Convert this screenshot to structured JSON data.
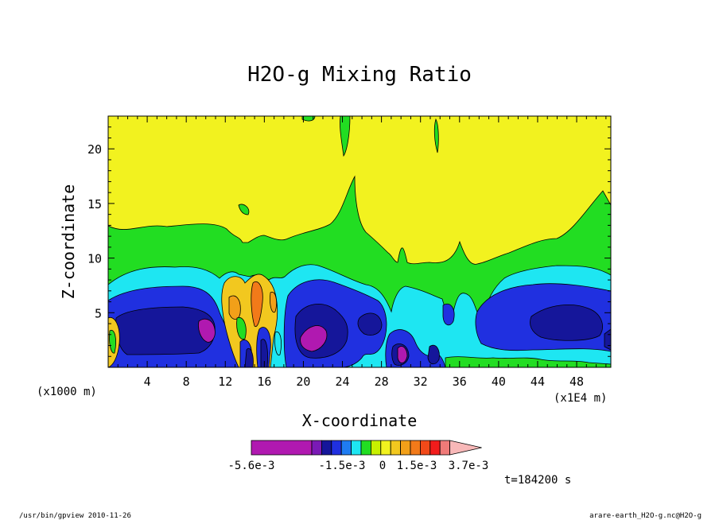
{
  "chart_data": {
    "type": "heatmap",
    "title": "H2O-g Mixing Ratio",
    "xlabel": "X-coordinate",
    "ylabel": "Z-coordinate",
    "x_unit_left": "(x1000 m)",
    "x_unit_right": "(x1E4 m)",
    "xlim": [
      0,
      51.5
    ],
    "ylim": [
      0,
      23
    ],
    "x_ticks": [
      4,
      8,
      12,
      16,
      20,
      24,
      28,
      32,
      36,
      40,
      44,
      48
    ],
    "y_ticks": [
      5,
      10,
      15,
      20
    ],
    "colorbar": {
      "colors": [
        "#b019b0",
        "#7a1ab5",
        "#15169a",
        "#2030e0",
        "#1f7cf2",
        "#1ee6f2",
        "#22dd22",
        "#c8f000",
        "#f2f21f",
        "#f2c81f",
        "#f2a019",
        "#f27a19",
        "#f24a19",
        "#f21c1c",
        "#f07a78",
        "#f8b8b8"
      ],
      "tick_labels": [
        "-5.6e-3",
        "-1.5e-3",
        "0",
        "1.5e-3",
        "3.7e-3"
      ]
    },
    "palette": {
      "background": "#f2f21f",
      "green": "#22dd22",
      "cyan": "#1ee6f2",
      "blue": "#2030e0",
      "navy": "#15169a",
      "purple": "#b019b0",
      "gold": "#f2c81f",
      "orange": "#f27a19"
    }
  },
  "time_label": "t=184200 s",
  "footer": {
    "left": "/usr/bin/gpview  2010-11-26",
    "right": "arare-earth_H2O-g.nc@H2O-g"
  }
}
